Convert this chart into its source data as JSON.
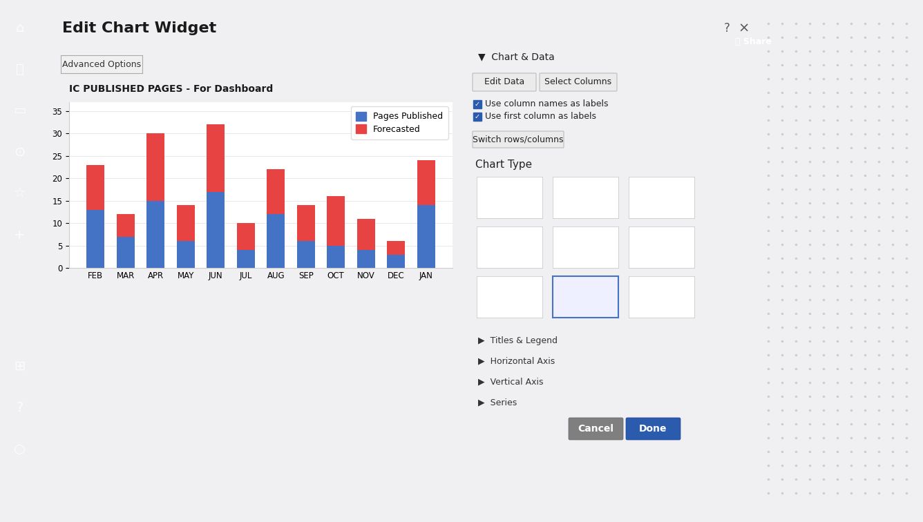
{
  "title": "IC PUBLISHED PAGES - For Dashboard",
  "categories": [
    "FEB",
    "MAR",
    "APR",
    "MAY",
    "JUN",
    "JUL",
    "AUG",
    "SEP",
    "OCT",
    "NOV",
    "DEC",
    "JAN"
  ],
  "blue_values": [
    13,
    7,
    15,
    6,
    17,
    4,
    12,
    6,
    5,
    4,
    3,
    14
  ],
  "red_values": [
    10,
    5,
    15,
    8,
    15,
    6,
    10,
    8,
    11,
    7,
    3,
    10
  ],
  "blue_color": "#4472C4",
  "red_color": "#E84343",
  "legend_blue": "Pages Published",
  "legend_red": "Forecasted",
  "yticks": [
    0,
    5,
    10,
    15,
    20,
    25,
    30,
    35
  ],
  "ylim_max": 37,
  "bar_width": 0.6,
  "dialog_title": "Edit Chart Widget",
  "adv_btn": "Advanced Options",
  "btn_edit": "Edit Data",
  "btn_select": "Select Columns",
  "chk1": "Use column names as labels",
  "chk2": "Use first column as labels",
  "switch_btn": "Switch rows/columns",
  "chart_type_label": "Chart Type",
  "section_labels": [
    "Titles & Legend",
    "Horizontal Axis",
    "Vertical Axis",
    "Series"
  ],
  "btn_cancel": "Cancel",
  "btn_done": "Done",
  "sidebar_color": "#1F3864",
  "dialog_bg": "#FFFFFF",
  "panel_bg": "#F4F4F4",
  "header_bg": "#D6D6D6",
  "section_bg": "#CCCCCC",
  "chart_title_bg": "#F0F0F0",
  "blue_btn": "#2B5BAD",
  "gray_btn": "#7F7F7F",
  "selected_icon_border": "#4472C4",
  "top_bar_bg": "#F0F0F2",
  "share_btn_color": "#2B5BAD"
}
